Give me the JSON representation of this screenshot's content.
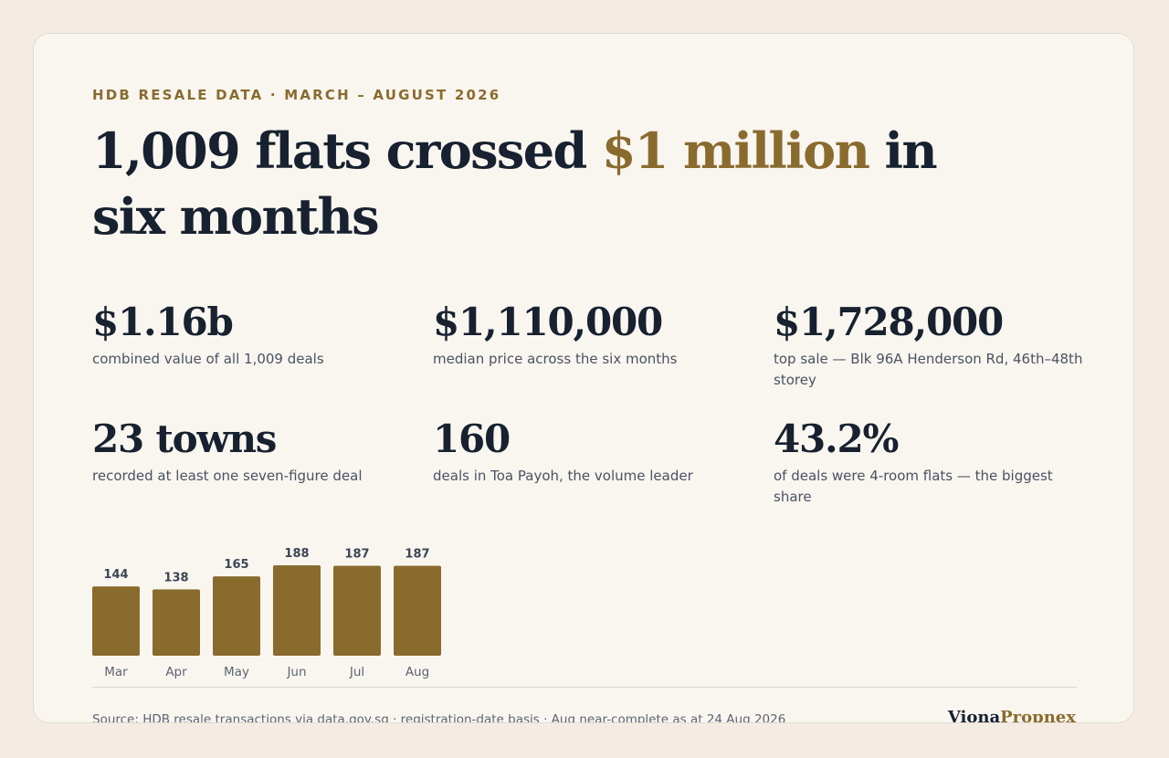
{
  "eyebrow": "HDB RESALE DATA · MARCH – AUGUST 2026",
  "headline": {
    "part1": "1,009 flats crossed ",
    "accent": "$1 million",
    "part2": " in six months"
  },
  "stats": [
    {
      "value": "$1.16b",
      "caption": "combined value of all 1,009 deals"
    },
    {
      "value": "$1,110,000",
      "caption": "median price across the six months"
    },
    {
      "value": "$1,728,000",
      "caption": "top sale — Blk 96A Henderson Rd, 46th–48th storey"
    },
    {
      "value": "23 towns",
      "caption": "recorded at least one seven-figure deal"
    },
    {
      "value": "160",
      "caption": "deals in Toa Payoh, the volume leader"
    },
    {
      "value": "43.2%",
      "caption": "of deals were 4-room flats — the biggest share"
    }
  ],
  "chart_data": {
    "type": "bar",
    "categories": [
      "Mar",
      "Apr",
      "May",
      "Jun",
      "Jul",
      "Aug"
    ],
    "values": [
      144,
      138,
      165,
      188,
      187,
      187
    ],
    "title": "",
    "xlabel": "",
    "ylabel": "",
    "ylim": [
      0,
      188
    ],
    "grid": false,
    "data_labels": true,
    "bar_color": "#8a6b2e",
    "label_color": "#3c4554",
    "tick_color": "#5d6470"
  },
  "footer": {
    "source": "Source: HDB resale transactions via data.gov.sg · registration-date basis · Aug near-complete as at 24 Aug 2026",
    "brand_part1": "Viona",
    "brand_part2": "Propnex"
  },
  "colors": {
    "accent": "#8a6b2e",
    "ink": "#17212f",
    "card_background": "#f9f6f0",
    "page_background": "#f4ece3"
  }
}
